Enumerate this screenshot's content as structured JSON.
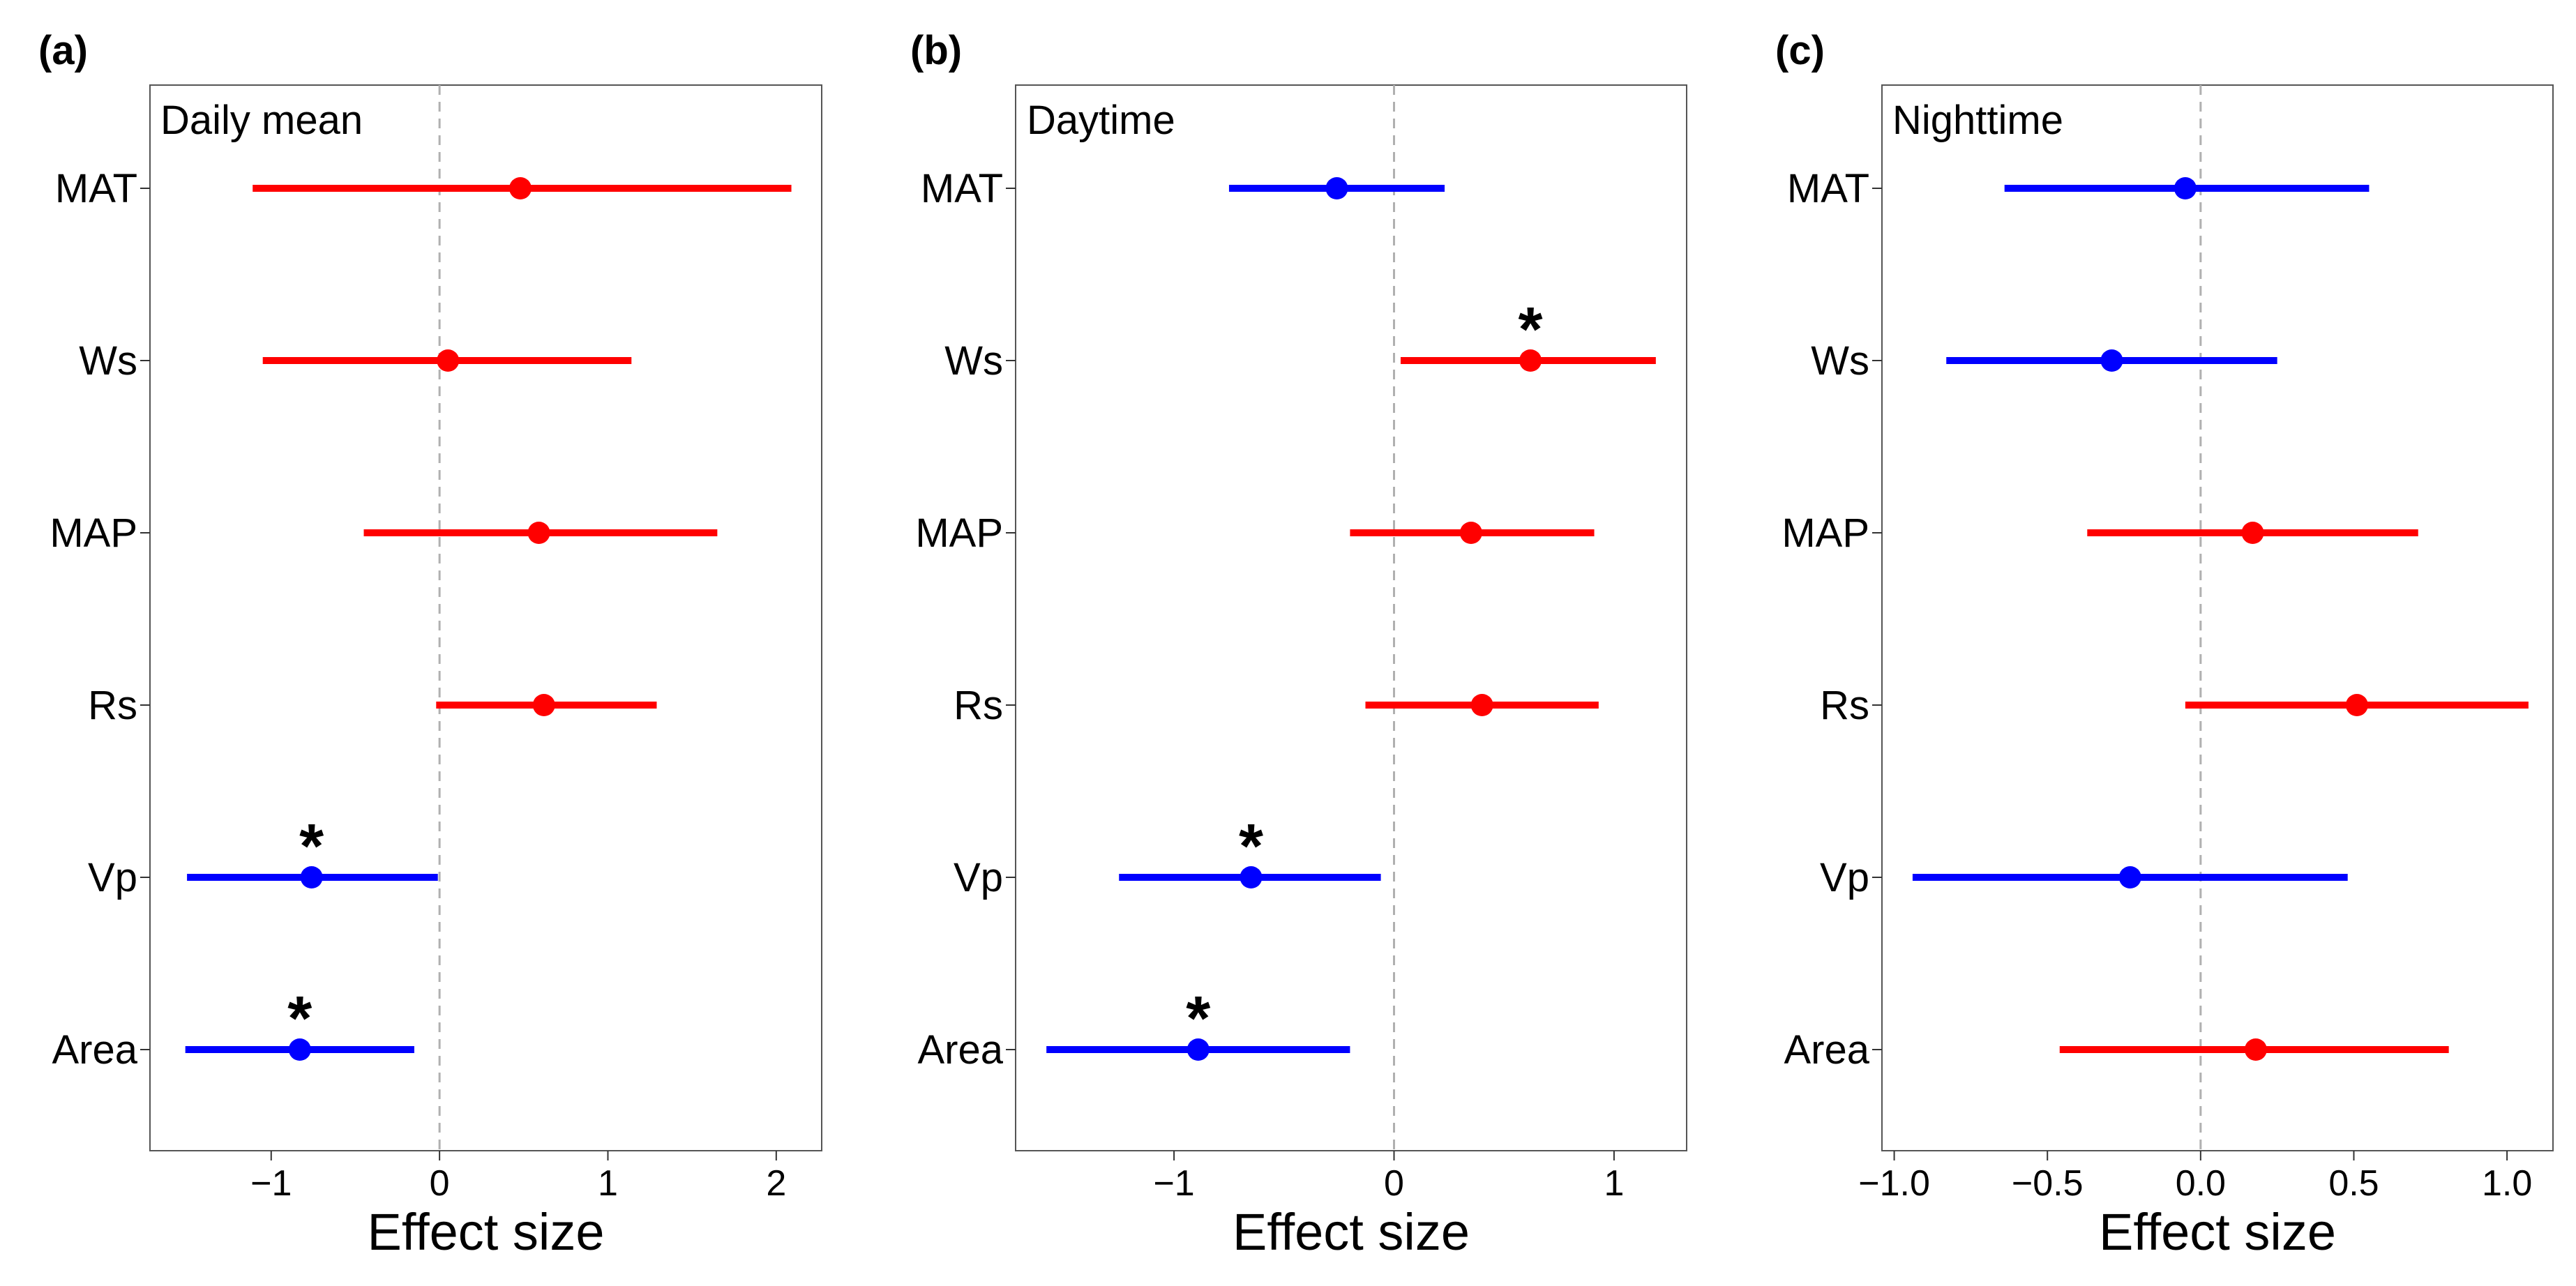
{
  "colors": {
    "positive": "#ff0000",
    "negative": "#0000ff",
    "zero_line": "#b0b0b0",
    "frame": "#555555"
  },
  "chart_data": [
    {
      "type": "scatter",
      "panel": "(a)",
      "title": "Daily mean",
      "xlabel": "Effect size",
      "ylabel": "",
      "categories": [
        "MAT",
        "Ws",
        "MAP",
        "Rs",
        "Vp",
        "Area"
      ],
      "estimates": [
        0.48,
        0.05,
        0.59,
        0.62,
        -0.76,
        -0.83
      ],
      "ci_low": [
        -1.11,
        -1.05,
        -0.45,
        -0.02,
        -1.5,
        -1.51
      ],
      "ci_high": [
        2.09,
        1.14,
        1.65,
        1.29,
        -0.01,
        -0.15
      ],
      "significant": [
        "",
        "",
        "",
        "",
        "*",
        "*"
      ],
      "xlim": [
        -1.72,
        2.27
      ],
      "xticks": [
        -1,
        0,
        1,
        2
      ],
      "xtick_labels": [
        "−1",
        "0",
        "1",
        "2"
      ],
      "grid": false
    },
    {
      "type": "scatter",
      "panel": "(b)",
      "title": "Daytime",
      "xlabel": "Effect size",
      "ylabel": "",
      "categories": [
        "MAT",
        "Ws",
        "MAP",
        "Rs",
        "Vp",
        "Area"
      ],
      "estimates": [
        -0.26,
        0.62,
        0.35,
        0.4,
        -0.65,
        -0.89
      ],
      "ci_low": [
        -0.75,
        0.03,
        -0.2,
        -0.13,
        -1.25,
        -1.58
      ],
      "ci_high": [
        0.23,
        1.19,
        0.91,
        0.93,
        -0.06,
        -0.2
      ],
      "significant": [
        "",
        "*",
        "",
        "",
        "*",
        "*"
      ],
      "xlim": [
        -1.72,
        1.33
      ],
      "xticks": [
        -1,
        0,
        1
      ],
      "xtick_labels": [
        "−1",
        "0",
        "1"
      ],
      "grid": false
    },
    {
      "type": "scatter",
      "panel": "(c)",
      "title": "Nighttime",
      "xlabel": "Effect size",
      "ylabel": "",
      "categories": [
        "MAT",
        "Ws",
        "MAP",
        "Rs",
        "Vp",
        "Area"
      ],
      "estimates": [
        -0.05,
        -0.29,
        0.17,
        0.51,
        -0.23,
        0.18
      ],
      "ci_low": [
        -0.64,
        -0.83,
        -0.37,
        -0.05,
        -0.94,
        -0.46
      ],
      "ci_high": [
        0.55,
        0.25,
        0.71,
        1.07,
        0.48,
        0.81
      ],
      "significant": [
        "",
        "",
        "",
        "",
        "",
        ""
      ],
      "xlim": [
        -1.04,
        1.15
      ],
      "xticks": [
        -1.0,
        -0.5,
        0.0,
        0.5,
        1.0
      ],
      "xtick_labels": [
        "−1.0",
        "−0.5",
        "0.0",
        "0.5",
        "1.0"
      ],
      "grid": false
    }
  ]
}
